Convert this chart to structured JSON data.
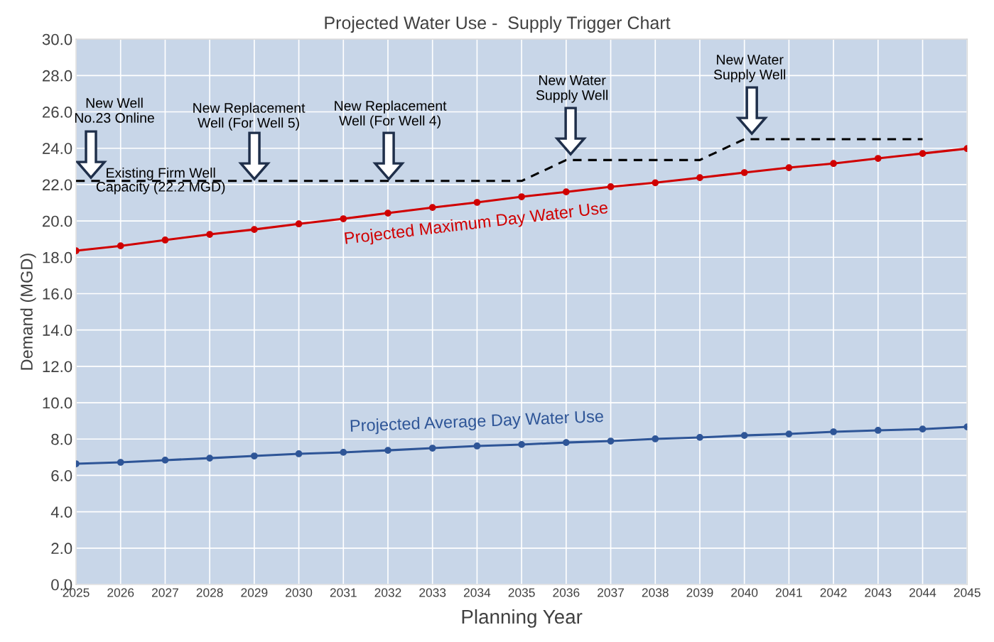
{
  "chart_data": {
    "type": "line",
    "title": "Projected Water Use -  Supply Trigger Chart",
    "xlabel": "Planning Year",
    "ylabel": "Demand (MGD)",
    "x": [
      2025,
      2026,
      2027,
      2028,
      2029,
      2030,
      2031,
      2032,
      2033,
      2034,
      2035,
      2036,
      2037,
      2038,
      2039,
      2040,
      2041,
      2042,
      2043,
      2044,
      2045
    ],
    "series": [
      {
        "name": "Projected Maximum Day Water Use",
        "color": "#d00000",
        "marker": "circle",
        "values": [
          18.36,
          18.63,
          18.95,
          19.26,
          19.53,
          19.84,
          20.12,
          20.43,
          20.74,
          21.02,
          21.33,
          21.6,
          21.88,
          22.1,
          22.38,
          22.66,
          22.93,
          23.16,
          23.44,
          23.71,
          23.98
        ]
      },
      {
        "name": "Projected Average Day Water Use",
        "color": "#2e5597",
        "marker": "circle",
        "values": [
          6.64,
          6.72,
          6.84,
          6.95,
          7.07,
          7.19,
          7.27,
          7.38,
          7.5,
          7.62,
          7.7,
          7.81,
          7.89,
          8.01,
          8.09,
          8.2,
          8.28,
          8.4,
          8.48,
          8.55,
          8.67
        ]
      },
      {
        "color": "#000000",
        "marker": "none",
        "line_style": "dashed",
        "x": [
          2025,
          2035,
          2036,
          2039,
          2040,
          2044
        ],
        "values": [
          22.2,
          22.2,
          23.35,
          23.35,
          24.5,
          24.5
        ]
      }
    ],
    "annotations": [
      "New Well\nNo.23 Online",
      "New Replacement\nWell (For Well 5)",
      "New Replacement\nWell (For Well 4)",
      "New Water\nSupply Well",
      "New Water\nSupply Well",
      {
        "text": "Existing Firm Well\nCapacity (22.2 MGD)",
        "x": 2026.9,
        "y": 22.2
      }
    ],
    "xlim": [
      2025,
      2045
    ],
    "xticks": [
      2025,
      2026,
      2027,
      2028,
      2029,
      2030,
      2031,
      2032,
      2033,
      2034,
      2035,
      2036,
      2037,
      2038,
      2039,
      2040,
      2041,
      2042,
      2043,
      2044,
      2045
    ],
    "ylim": [
      0,
      30
    ],
    "yticks": [
      {
        "value": 0,
        "label": "0.0"
      },
      {
        "value": 2,
        "label": "2.0"
      },
      {
        "value": 4,
        "label": "4.0"
      },
      {
        "value": 6,
        "label": "6.0"
      },
      {
        "value": 8,
        "label": "8.0"
      },
      {
        "value": 10,
        "label": "10.0"
      },
      {
        "value": 12,
        "label": "12.0"
      },
      {
        "value": 14,
        "label": "14.0"
      },
      {
        "value": 16,
        "label": "16.0"
      },
      {
        "value": 18,
        "label": "18.0"
      },
      {
        "value": 20,
        "label": "20.0"
      },
      {
        "value": 22,
        "label": "22.0"
      },
      {
        "value": 24,
        "label": "24.0"
      },
      {
        "value": 26,
        "label": "26.0"
      },
      {
        "value": 28,
        "label": "28.0"
      },
      {
        "value": 30,
        "label": "30.0"
      }
    ],
    "grid": true
  }
}
